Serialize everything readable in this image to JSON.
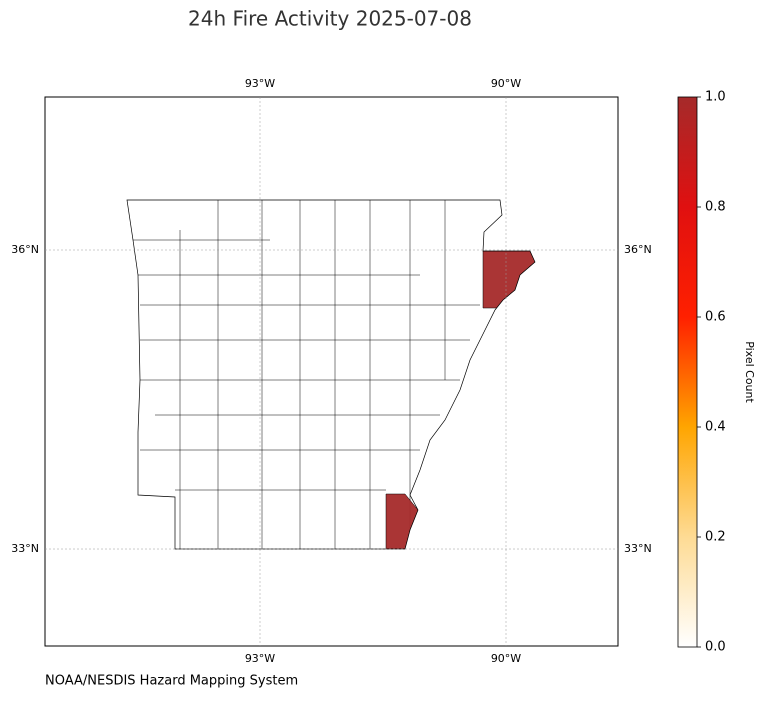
{
  "map": {
    "title": "24h Fire Activity 2025-07-08",
    "lon_ticks": [
      {
        "value": -93,
        "label": "93°W"
      },
      {
        "value": -90,
        "label": "90°W"
      }
    ],
    "lat_ticks": [
      {
        "value": 36,
        "label": "36°N"
      },
      {
        "value": 33,
        "label": "33°N"
      }
    ],
    "colorbar": {
      "label": "Pixel Count",
      "lim": [
        0,
        1
      ],
      "ticks": [
        {
          "value": 0,
          "label": "0.0"
        },
        {
          "value": 0.2,
          "label": "0.2"
        },
        {
          "value": 0.4,
          "label": "0.4"
        },
        {
          "value": 0.6,
          "label": "0.6"
        },
        {
          "value": 0.8,
          "label": "0.8"
        },
        {
          "value": 1,
          "label": "1.0"
        }
      ]
    },
    "footer": "NOAA/NESDIS Hazard Mapping System"
  }
}
